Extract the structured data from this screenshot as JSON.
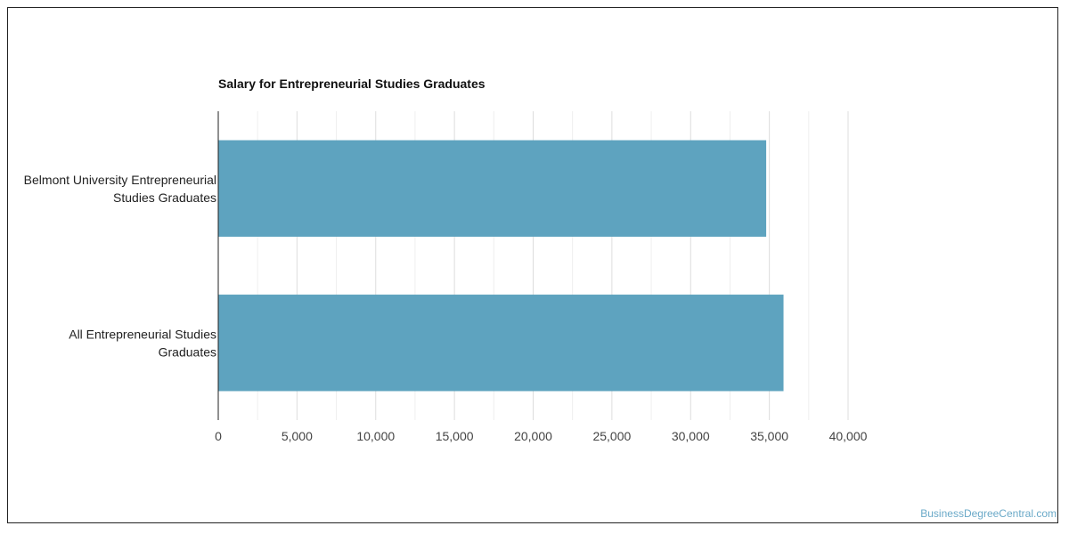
{
  "chart_data": {
    "type": "bar",
    "orientation": "horizontal",
    "title": "Salary for Entrepreneurial Studies Graduates",
    "categories": [
      [
        "Belmont University Entrepreneurial",
        "Studies Graduates"
      ],
      [
        "All Entrepreneurial Studies",
        "Graduates"
      ]
    ],
    "values": [
      34800,
      35900
    ],
    "xlim": [
      0,
      40000
    ],
    "xticks": [
      0,
      5000,
      10000,
      15000,
      20000,
      25000,
      30000,
      35000,
      40000
    ],
    "xtick_labels": [
      "0",
      "5,000",
      "10,000",
      "15,000",
      "20,000",
      "25,000",
      "30,000",
      "35,000",
      "40,000"
    ],
    "grid": true,
    "bar_color": "#5ea3bf",
    "grid_color": "#dddddd"
  },
  "watermark": "BusinessDegreeCentral.com"
}
